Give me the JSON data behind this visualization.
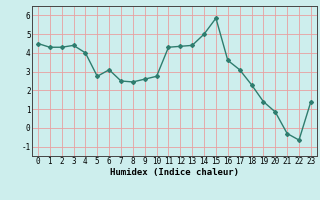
{
  "x": [
    0,
    1,
    2,
    3,
    4,
    5,
    6,
    7,
    8,
    9,
    10,
    11,
    12,
    13,
    14,
    15,
    16,
    17,
    18,
    19,
    20,
    21,
    22,
    23
  ],
  "y": [
    4.5,
    4.3,
    4.3,
    4.4,
    4.0,
    2.75,
    3.1,
    2.5,
    2.45,
    2.6,
    2.75,
    4.3,
    4.35,
    4.4,
    5.0,
    5.85,
    3.6,
    3.1,
    2.3,
    1.4,
    0.85,
    -0.3,
    -0.65,
    1.4
  ],
  "xlabel": "Humidex (Indice chaleur)",
  "line_color": "#2e7d6e",
  "bg_color": "#cdeeed",
  "grid_color": "#e8a0a0",
  "ylim": [
    -1.5,
    6.5
  ],
  "xlim": [
    -0.5,
    23.5
  ],
  "yticks": [
    -1,
    0,
    1,
    2,
    3,
    4,
    5,
    6
  ],
  "xticks": [
    0,
    1,
    2,
    3,
    4,
    5,
    6,
    7,
    8,
    9,
    10,
    11,
    12,
    13,
    14,
    15,
    16,
    17,
    18,
    19,
    20,
    21,
    22,
    23
  ],
  "marker": "D",
  "markersize": 2.0,
  "linewidth": 1.0,
  "tick_fontsize": 5.5,
  "xlabel_fontsize": 6.5
}
